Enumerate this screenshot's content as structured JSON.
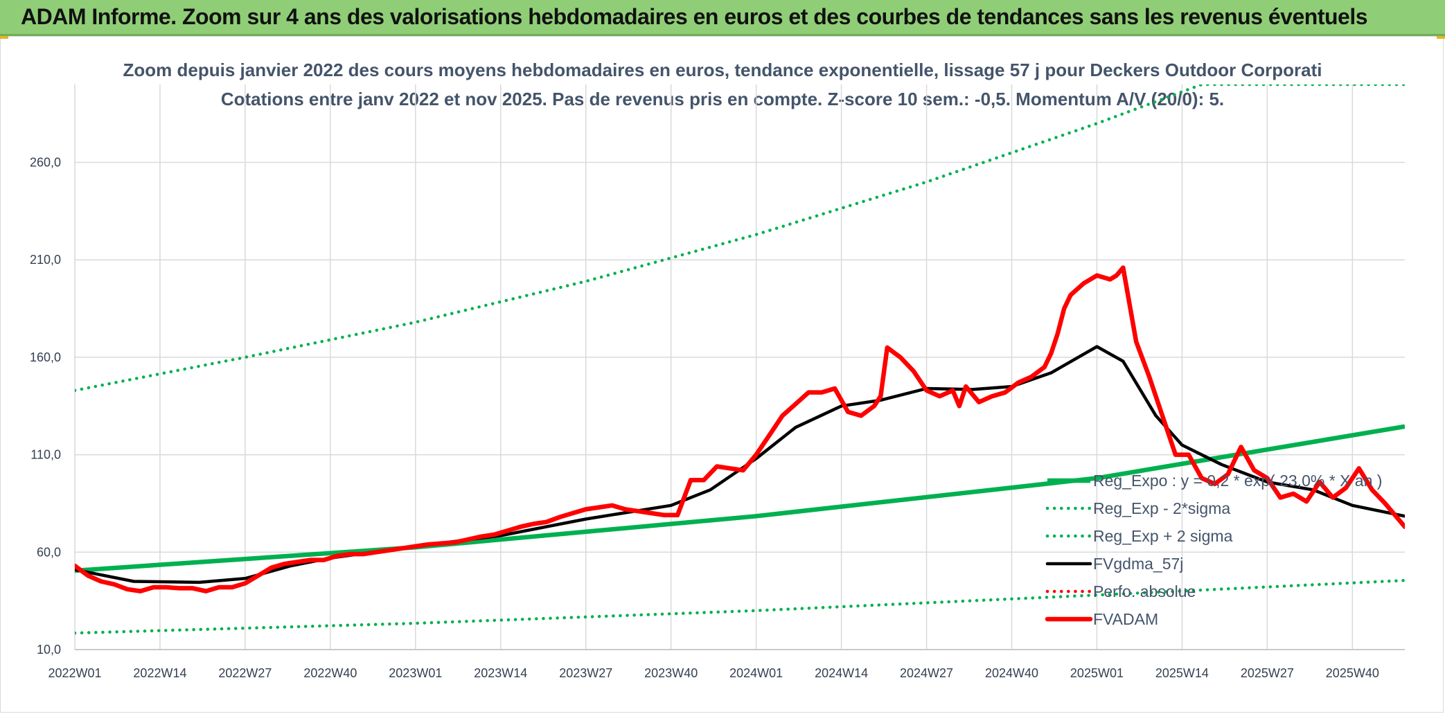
{
  "header": {
    "title": "ADAM Informe. Zoom sur 4 ans des valorisations hebdomadaires en euros et des courbes de tendances sans les revenus éventuels"
  },
  "colors": {
    "header_bg": "#8fce76",
    "trend_green": "#00b050",
    "black_line": "#000000",
    "red_line": "#ff0000",
    "grid": "#d9d9d9",
    "axis_text": "#44546a"
  },
  "chart_data": {
    "type": "line",
    "title": "Zoom depuis janvier 2022 des cours moyens hebdomadaires en euros, tendance exponentielle, lissage 57 j pour Deckers Outdoor Corporati",
    "subtitle": "Cotations entre janv 2022 et nov 2025. Pas de revenus pris en compte. Z-score 10 sem.: -0,5. Momentum A/V (20/0): 5.",
    "xlabel": "",
    "ylabel": "",
    "x_range": [
      1,
      204
    ],
    "ylim": [
      10,
      300
    ],
    "y_ticks": [
      10,
      60,
      110,
      160,
      210,
      260
    ],
    "y_tick_labels": [
      "10,0",
      "60,0",
      "110,0",
      "160,0",
      "210,0",
      "260,0"
    ],
    "x_ticks": [
      1,
      14,
      27,
      40,
      53,
      66,
      79,
      92,
      105,
      118,
      131,
      144,
      157,
      170,
      183,
      196
    ],
    "x_tick_labels": [
      "2022W01",
      "2022W14",
      "2022W27",
      "2022W40",
      "2023W01",
      "2023W14",
      "2023W27",
      "2023W40",
      "2024W01",
      "2024W14",
      "2024W27",
      "2024W40",
      "2025W01",
      "2025W14",
      "2025W27",
      "2025W40"
    ],
    "grid": true,
    "legend_position": "right",
    "series": [
      {
        "name": "Reg_Expo : y = 0,2 * exp( 23,0% * X an )",
        "style": "solid",
        "color": "#00b050",
        "x": [
          1,
          53,
          105,
          157,
          204
        ],
        "values": [
          50.5,
          62.5,
          78.5,
          98.0,
          124.5
        ]
      },
      {
        "name": "Reg_Exp - 2*sigma",
        "style": "dotted",
        "color": "#00b050",
        "x": [
          1,
          53,
          105,
          157,
          204
        ],
        "values": [
          18.5,
          23.5,
          30.0,
          38.0,
          45.5
        ]
      },
      {
        "name": "Reg_Exp + 2 sigma",
        "style": "dotted",
        "color": "#00b050",
        "x": [
          1,
          27,
          53,
          79,
          105,
          131,
          157,
          173,
          204
        ],
        "values": [
          143.0,
          160.0,
          178.0,
          199.0,
          223.0,
          250.0,
          280.0,
          300.0,
          300.0
        ]
      },
      {
        "name": "FVgdma_57j",
        "style": "solid",
        "color": "#000000",
        "x": [
          1,
          10,
          20,
          27,
          34,
          40,
          53,
          66,
          79,
          92,
          98,
          105,
          111,
          118,
          124,
          131,
          138,
          144,
          150,
          157,
          161,
          166,
          170,
          176,
          183,
          190,
          196,
          204
        ],
        "values": [
          51.0,
          45.0,
          44.5,
          46.5,
          53.0,
          57.0,
          63.0,
          68.5,
          77.0,
          84.0,
          92.0,
          108.0,
          124.0,
          135.0,
          138.0,
          144.0,
          143.5,
          145.0,
          152.0,
          165.5,
          158.0,
          130.0,
          115.0,
          105.0,
          96.0,
          92.0,
          84.0,
          78.5
        ]
      },
      {
        "name": "Perfo. absolue",
        "style": "dotted",
        "color": "#ff0000",
        "x": [],
        "values": []
      },
      {
        "name": "FVADAM",
        "style": "solid",
        "color": "#ff0000",
        "x": [
          1,
          3,
          5,
          7,
          9,
          11,
          13,
          15,
          17,
          19,
          21,
          23,
          25,
          27,
          29,
          31,
          33,
          35,
          37,
          39,
          41,
          43,
          45,
          47,
          49,
          51,
          53,
          55,
          57,
          59,
          61,
          63,
          65,
          67,
          69,
          71,
          73,
          75,
          77,
          79,
          81,
          83,
          85,
          87,
          89,
          91,
          93,
          95,
          97,
          99,
          101,
          103,
          105,
          107,
          109,
          111,
          113,
          115,
          117,
          119,
          121,
          123,
          124,
          125,
          127,
          129,
          131,
          133,
          135,
          136,
          137,
          139,
          141,
          143,
          145,
          147,
          149,
          150,
          151,
          152,
          153,
          155,
          157,
          159,
          160,
          161,
          163,
          165,
          167,
          169,
          171,
          173,
          175,
          177,
          179,
          181,
          183,
          185,
          187,
          189,
          191,
          193,
          195,
          197,
          199,
          201,
          204
        ],
        "values": [
          53.0,
          48.0,
          45.0,
          43.5,
          41.0,
          40.0,
          42.0,
          42.0,
          41.5,
          41.5,
          40.0,
          42.0,
          42.0,
          44.0,
          48.0,
          52.0,
          54.0,
          55.0,
          56.0,
          56.0,
          58.0,
          59.0,
          59.0,
          60.0,
          61.0,
          62.0,
          63.0,
          64.0,
          64.5,
          65.0,
          66.5,
          68.0,
          69.0,
          71.0,
          73.0,
          74.5,
          75.5,
          78.0,
          80.0,
          82.0,
          83.0,
          84.0,
          82.0,
          81.0,
          80.0,
          79.0,
          79.0,
          97.0,
          97.0,
          104.0,
          103.0,
          102.0,
          110.0,
          120.0,
          130.0,
          136.0,
          142.0,
          142.0,
          144.0,
          132.0,
          130.0,
          135.0,
          140.0,
          165.0,
          160.0,
          153.0,
          143.0,
          140.0,
          143.0,
          135.0,
          145.0,
          137.0,
          140.0,
          142.0,
          147.0,
          150.0,
          155.0,
          162.0,
          172.0,
          185.0,
          192.0,
          198.0,
          202.0,
          200.0,
          202.0,
          206.0,
          168.0,
          150.0,
          130.0,
          110.0,
          110.0,
          98.0,
          95.0,
          100.0,
          114.0,
          102.0,
          98.0,
          88.0,
          90.0,
          86.0,
          96.0,
          88.0,
          93.0,
          103.0,
          92.0,
          85.0,
          73.0
        ]
      }
    ]
  }
}
